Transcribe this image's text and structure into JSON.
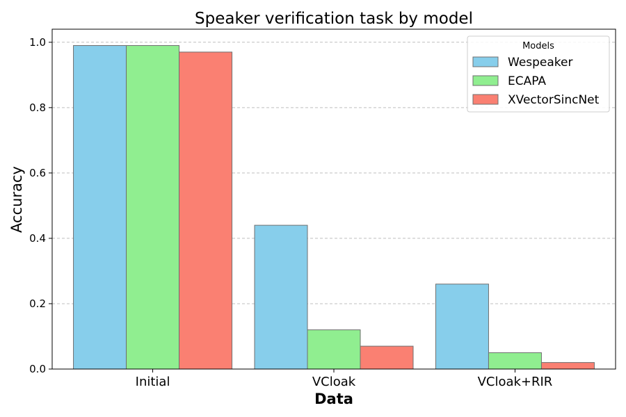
{
  "chart_data": {
    "type": "bar",
    "title": "Speaker verification task by model",
    "xlabel": "Data",
    "ylabel": "Accuracy",
    "categories": [
      "Initial",
      "VCloak",
      "VCloak+RIR"
    ],
    "series": [
      {
        "name": "Wespeaker",
        "color": "#87ceeb",
        "values": [
          0.99,
          0.44,
          0.26
        ]
      },
      {
        "name": "ECAPA",
        "color": "#90ee90",
        "values": [
          0.99,
          0.12,
          0.05
        ]
      },
      {
        "name": "XVectorSincNet",
        "color": "#fa8072",
        "values": [
          0.97,
          0.07,
          0.02
        ]
      }
    ],
    "ylim": [
      0,
      1.04
    ],
    "yticks": [
      "0.0",
      "0.2",
      "0.4",
      "0.6",
      "0.8",
      "1.0"
    ],
    "grid": "y-dashed",
    "legend": {
      "title": "Models",
      "placement": "top-right"
    }
  }
}
